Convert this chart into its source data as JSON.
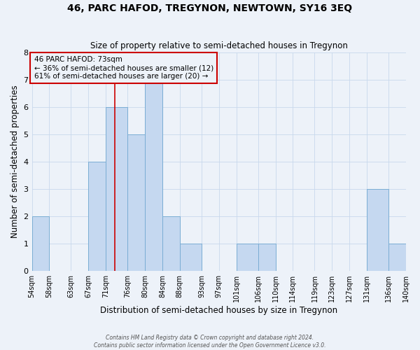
{
  "title": "46, PARC HAFOD, TREGYNON, NEWTOWN, SY16 3EQ",
  "subtitle": "Size of property relative to semi-detached houses in Tregynon",
  "xlabel": "Distribution of semi-detached houses by size in Tregynon",
  "ylabel": "Number of semi-detached properties",
  "bin_edges": [
    54,
    58,
    63,
    67,
    71,
    76,
    80,
    84,
    88,
    93,
    97,
    101,
    106,
    110,
    114,
    119,
    123,
    127,
    131,
    136,
    140
  ],
  "counts": [
    2,
    0,
    0,
    4,
    6,
    5,
    7,
    2,
    1,
    0,
    0,
    1,
    1,
    0,
    0,
    0,
    0,
    0,
    3,
    1
  ],
  "tick_labels": [
    "54sqm",
    "58sqm",
    "63sqm",
    "67sqm",
    "71sqm",
    "76sqm",
    "80sqm",
    "84sqm",
    "88sqm",
    "93sqm",
    "97sqm",
    "101sqm",
    "106sqm",
    "110sqm",
    "114sqm",
    "119sqm",
    "123sqm",
    "127sqm",
    "131sqm",
    "136sqm",
    "140sqm"
  ],
  "bar_color": "#c5d8f0",
  "bar_edge_color": "#7aadd4",
  "property_line_x": 73,
  "property_line_color": "#cc0000",
  "annotation_title": "46 PARC HAFOD: 73sqm",
  "annotation_line1": "← 36% of semi-detached houses are smaller (12)",
  "annotation_line2": "61% of semi-detached houses are larger (20) →",
  "annotation_box_color": "#cc0000",
  "ylim": [
    0,
    8
  ],
  "yticks": [
    0,
    1,
    2,
    3,
    4,
    5,
    6,
    7,
    8
  ],
  "background_color": "#edf2f9",
  "grid_color": "#c8d8ec",
  "footer_line1": "Contains HM Land Registry data © Crown copyright and database right 2024.",
  "footer_line2": "Contains public sector information licensed under the Open Government Licence v3.0."
}
